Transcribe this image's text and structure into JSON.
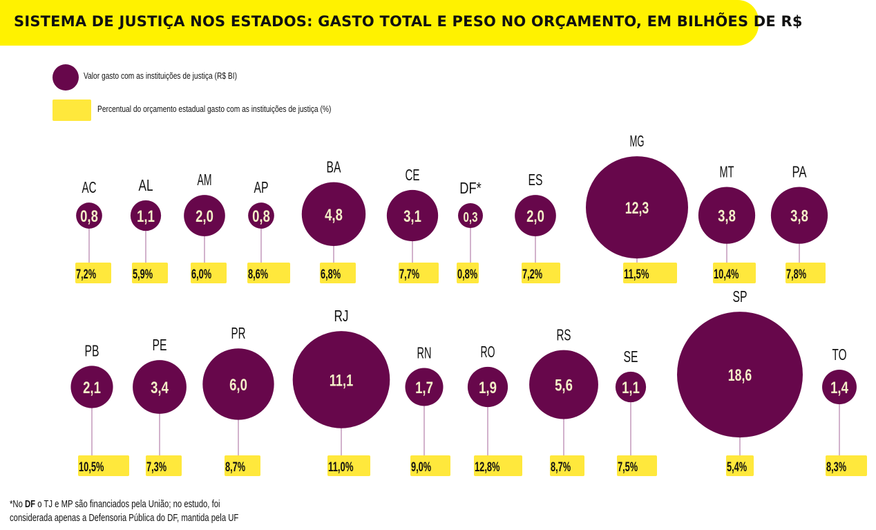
{
  "header": {
    "title": "SISTEMA DE JUSTIÇA NOS ESTADOS: GASTO TOTAL E PESO NO ORÇAMENTO, EM BILHÕES DE R$"
  },
  "legend": {
    "circle_label": "Valor gasto com as instituições de justiça (R$ BI)",
    "rect_label": "Percentual do orçamento estadual gasto com as instituições de justiça (%)"
  },
  "footnote": {
    "prefix": "*No ",
    "bold": "DF",
    "line1_rest": " o TJ e MP são financiados pela União; no estudo, foi",
    "line2": "considerada apenas a Defensoria Pública do DF, mantida pela UF"
  },
  "colors": {
    "bubble": "#67074b",
    "bubble_text": "#f4f0c8",
    "pct_box": "#ffe83c",
    "stem": "#d2b2cc",
    "header": "#fff200"
  },
  "chart_data": {
    "type": "bubble",
    "title": "SISTEMA DE JUSTIÇA NOS ESTADOS: GASTO TOTAL E PESO NO ORÇAMENTO, EM BILHÕES DE R$",
    "value_unit": "R$ bilhões",
    "pct_unit": "%",
    "rows": [
      {
        "states": [
          {
            "uf": "AC",
            "value": "0,8",
            "pct": "7,2%"
          },
          {
            "uf": "AL",
            "value": "1,1",
            "pct": "5,9%"
          },
          {
            "uf": "AM",
            "value": "2,0",
            "pct": "6,0%"
          },
          {
            "uf": "AP",
            "value": "0,8",
            "pct": "8,6%"
          },
          {
            "uf": "BA",
            "value": "4,8",
            "pct": "6,8%"
          },
          {
            "uf": "CE",
            "value": "3,1",
            "pct": "7,7%"
          },
          {
            "uf": "DF*",
            "value": "0,3",
            "pct": "0,8%"
          },
          {
            "uf": "ES",
            "value": "2,0",
            "pct": "7,2%"
          },
          {
            "uf": "MG",
            "value": "12,3",
            "pct": "11,5%"
          },
          {
            "uf": "MT",
            "value": "3,8",
            "pct": "10,4%"
          },
          {
            "uf": "PA",
            "value": "3,8",
            "pct": "7,8%"
          }
        ]
      },
      {
        "states": [
          {
            "uf": "PB",
            "value": "2,1",
            "pct": "10,5%"
          },
          {
            "uf": "PE",
            "value": "3,4",
            "pct": "7,3%"
          },
          {
            "uf": "PR",
            "value": "6,0",
            "pct": "8,7%"
          },
          {
            "uf": "RJ",
            "value": "11,1",
            "pct": "11,0%"
          },
          {
            "uf": "RN",
            "value": "1,7",
            "pct": "9,0%"
          },
          {
            "uf": "RO",
            "value": "1,9",
            "pct": "12,8%"
          },
          {
            "uf": "RS",
            "value": "5,6",
            "pct": "8,7%"
          },
          {
            "uf": "SE",
            "value": "1,1",
            "pct": "7,5%"
          },
          {
            "uf": "SP",
            "value": "18,6",
            "pct": "5,4%"
          },
          {
            "uf": "TO",
            "value": "1,4",
            "pct": "8,3%"
          }
        ]
      }
    ]
  }
}
